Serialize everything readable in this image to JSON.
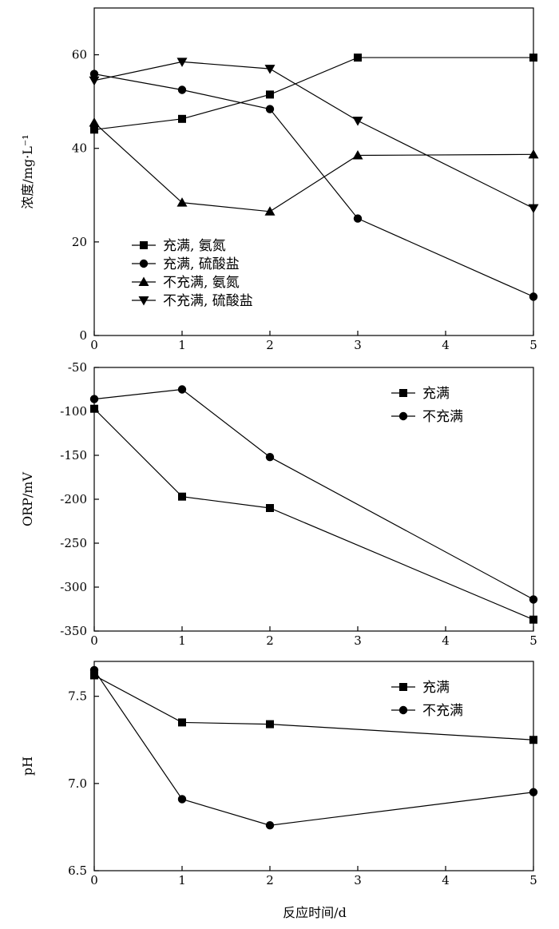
{
  "figure": {
    "xlabel": "反应时间/d"
  },
  "chart_data": [
    {
      "type": "line",
      "ylabel": "浓度/mg·L⁻¹",
      "x": [
        0,
        1,
        2,
        3,
        5
      ],
      "xlim": [
        0,
        5
      ],
      "ylim": [
        0,
        70
      ],
      "xticks": [
        "0",
        "1",
        "2",
        "3",
        "4",
        "5"
      ],
      "yticks": [
        "0",
        "20",
        "40",
        "60"
      ],
      "legend_position": "bottom-left",
      "grid": false,
      "series": [
        {
          "name": "充满, 氨氮",
          "marker": "square",
          "values": [
            44,
            46.3,
            51.5,
            59.4,
            59.4
          ]
        },
        {
          "name": "充满, 硫酸盐",
          "marker": "circle",
          "values": [
            55.9,
            52.5,
            48.4,
            25,
            8.3
          ]
        },
        {
          "name": "不充满, 氨氮",
          "marker": "triangle-up",
          "values": [
            45.5,
            28.4,
            26.5,
            38.5,
            38.7
          ]
        },
        {
          "name": "不充满, 硫酸盐",
          "marker": "triangle-down",
          "values": [
            54.5,
            58.5,
            57,
            45.9,
            27.2
          ]
        }
      ]
    },
    {
      "type": "line",
      "ylabel": "ORP/mV",
      "x": [
        0,
        1,
        2,
        5
      ],
      "xlim": [
        0,
        5
      ],
      "ylim": [
        -350,
        -50
      ],
      "xticks": [
        "0",
        "1",
        "2",
        "3",
        "4",
        "5"
      ],
      "yticks": [
        "-50",
        "-100",
        "-150",
        "-200",
        "-250",
        "-300",
        "-350"
      ],
      "legend_position": "top-right",
      "grid": false,
      "series": [
        {
          "name": "充满",
          "marker": "square",
          "values": [
            -97,
            -197,
            -210,
            -337
          ]
        },
        {
          "name": "不充满",
          "marker": "circle",
          "values": [
            -86,
            -75,
            -152,
            -314
          ]
        }
      ]
    },
    {
      "type": "line",
      "ylabel": "pH",
      "x": [
        0,
        1,
        2,
        5
      ],
      "xlim": [
        0,
        5
      ],
      "ylim": [
        6.5,
        7.7
      ],
      "xticks": [
        "0",
        "1",
        "2",
        "3",
        "4",
        "5"
      ],
      "yticks": [
        "6.5",
        "7.0",
        "7.5"
      ],
      "legend_position": "top-right",
      "grid": false,
      "series": [
        {
          "name": "充满",
          "marker": "square",
          "values": [
            7.62,
            7.35,
            7.34,
            7.25
          ]
        },
        {
          "name": "不充满",
          "marker": "circle",
          "values": [
            7.65,
            6.91,
            6.76,
            6.95
          ]
        }
      ]
    }
  ]
}
